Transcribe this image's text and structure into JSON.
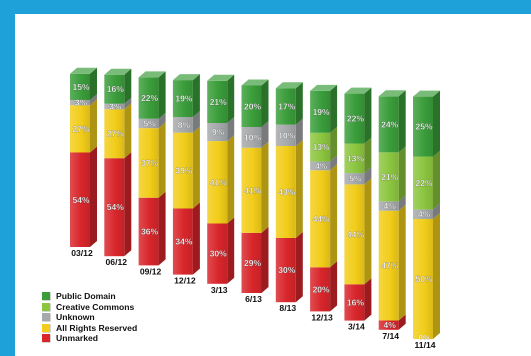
{
  "chart_data": {
    "type": "bar",
    "stacked": true,
    "percent_stacked": true,
    "categories": [
      "03/12",
      "06/12",
      "09/12",
      "12/12",
      "3/13",
      "6/13",
      "8/13",
      "12/13",
      "3/14",
      "7/14",
      "11/14"
    ],
    "series": [
      {
        "name": "Unmarked",
        "color": "#d8262b",
        "values": [
          54,
          54,
          36,
          34,
          30,
          29,
          30,
          20,
          16,
          4,
          0
        ]
      },
      {
        "name": "All Rights Reserved",
        "color": "#f2cd1a",
        "values": [
          27,
          27,
          37,
          39,
          41,
          41,
          43,
          44,
          44,
          47,
          50
        ]
      },
      {
        "name": "Unknown",
        "color": "#a6a9ab",
        "values": [
          3,
          3,
          5,
          8,
          9,
          10,
          10,
          4,
          5,
          4,
          4
        ]
      },
      {
        "name": "Creative Commons",
        "color": "#8cc63f",
        "values": [
          0,
          0,
          0,
          0,
          0,
          0,
          0,
          13,
          13,
          21,
          22
        ]
      },
      {
        "name": "Public Domain",
        "color": "#3a9d3a",
        "values": [
          15,
          16,
          22,
          19,
          21,
          20,
          17,
          19,
          22,
          24,
          25
        ]
      }
    ],
    "data_labels": [
      [
        "54%",
        "27%",
        "3%",
        null,
        "15%"
      ],
      [
        "54%",
        "27%",
        "3%",
        null,
        "16%"
      ],
      [
        "36%",
        "37%",
        "5%",
        null,
        "22%"
      ],
      [
        "34%",
        "39%",
        "8%",
        null,
        "19%"
      ],
      [
        "30%",
        "41%",
        "9%",
        null,
        "21%"
      ],
      [
        "29%",
        "41%",
        "10%",
        null,
        "20%"
      ],
      [
        "30%",
        "43%",
        "10%",
        null,
        "17%"
      ],
      [
        "20%",
        "44%",
        "4%",
        "13%",
        "19%"
      ],
      [
        "16%",
        "44%",
        "5%",
        "13%",
        "22%"
      ],
      [
        "4%",
        "47%",
        "4%",
        "21%",
        "24%"
      ],
      [
        "0%",
        "50%",
        "4%",
        "22%",
        "25%"
      ]
    ],
    "legend": {
      "position": "bottom-left",
      "order": [
        "Public Domain",
        "Creative Commons",
        "Unknown",
        "All Rights Reserved",
        "Unmarked"
      ]
    },
    "style": "3d-perspective-bars"
  }
}
